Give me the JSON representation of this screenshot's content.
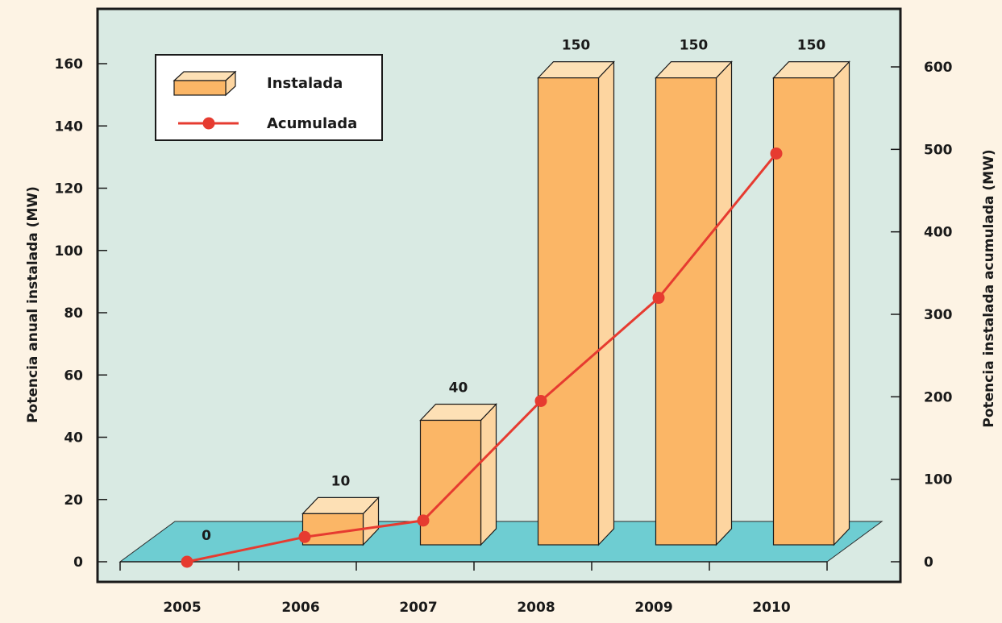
{
  "chart_data": {
    "type": "bar",
    "categories": [
      "2005",
      "2006",
      "2007",
      "2008",
      "2009",
      "2010"
    ],
    "series": [
      {
        "name": "Instalada",
        "type": "bar",
        "axis": "left",
        "values": [
          0,
          10,
          40,
          150,
          150,
          150
        ],
        "data_labels": [
          "0",
          "10",
          "40",
          "150",
          "150",
          "150"
        ]
      },
      {
        "name": "Acumulada",
        "type": "line",
        "axis": "right",
        "values": [
          0,
          30,
          50,
          195,
          320,
          495
        ]
      }
    ],
    "ylabel": "Potencia anual instalada (MW)",
    "y2label": "Potencia instalada acumulada (MW)",
    "ylim": [
      0,
      160
    ],
    "y2lim": [
      0,
      600
    ],
    "yticks": [
      "0",
      "20",
      "40",
      "60",
      "80",
      "100",
      "120",
      "140",
      "160"
    ],
    "y2ticks": [
      "0",
      "100",
      "200",
      "300",
      "400",
      "500",
      "600"
    ],
    "legend": [
      "Instalada",
      "Acumulada"
    ],
    "legend_position": "top-left",
    "grid": false,
    "colors": {
      "bar_front": "#fbb666",
      "bar_side": "#fdd5a0",
      "bar_top": "#fde0b5",
      "floor": "#6ecdd2",
      "line": "#e63b30",
      "plot_background": "#d9eae3",
      "page_background": "#fdf3e4"
    }
  }
}
